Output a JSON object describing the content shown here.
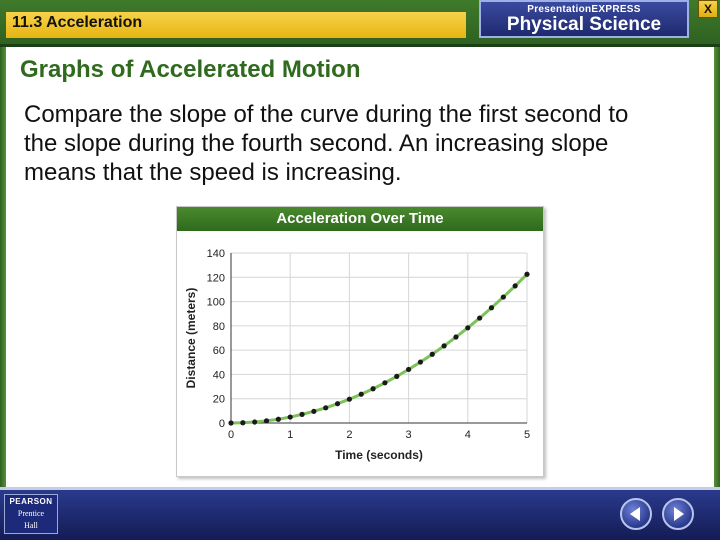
{
  "header": {
    "topic": "11.3 Acceleration",
    "brand_sub": "PresentationEXPRESS",
    "brand_title": "Physical Science",
    "close_label": "X"
  },
  "slide": {
    "heading": "Graphs of Accelerated Motion",
    "body": "Compare the slope of the curve during the first second to the slope during the fourth second. An increasing slope means that the speed is increasing."
  },
  "footer": {
    "logo_name": "PEARSON",
    "logo_sub1": "Prentice",
    "logo_sub2": "Hall"
  },
  "colors": {
    "curve": "#7dc25a",
    "point": "#1a1a1a",
    "heading": "#2f6a1e"
  },
  "chart_data": {
    "type": "scatter",
    "title": "Acceleration Over Time",
    "xlabel": "Time (seconds)",
    "ylabel": "Distance (meters)",
    "xlim": [
      0,
      5
    ],
    "ylim": [
      0,
      140
    ],
    "xticks": [
      "0",
      "1",
      "2",
      "3",
      "4",
      "5"
    ],
    "yticks": [
      "0",
      "20",
      "40",
      "60",
      "80",
      "100",
      "120",
      "140"
    ],
    "grid": true,
    "x": [
      0,
      0.2,
      0.4,
      0.6,
      0.8,
      1.0,
      1.2,
      1.4,
      1.6,
      1.8,
      2.0,
      2.2,
      2.4,
      2.6,
      2.8,
      3.0,
      3.2,
      3.4,
      3.6,
      3.8,
      4.0,
      4.2,
      4.4,
      4.6,
      4.8,
      5.0
    ],
    "y": [
      0.0,
      0.2,
      0.8,
      1.8,
      3.1,
      4.9,
      7.1,
      9.6,
      12.5,
      15.9,
      19.6,
      23.7,
      28.2,
      33.1,
      38.4,
      44.1,
      50.2,
      56.6,
      63.5,
      70.8,
      78.4,
      86.4,
      94.9,
      103.7,
      112.9,
      122.5
    ]
  }
}
